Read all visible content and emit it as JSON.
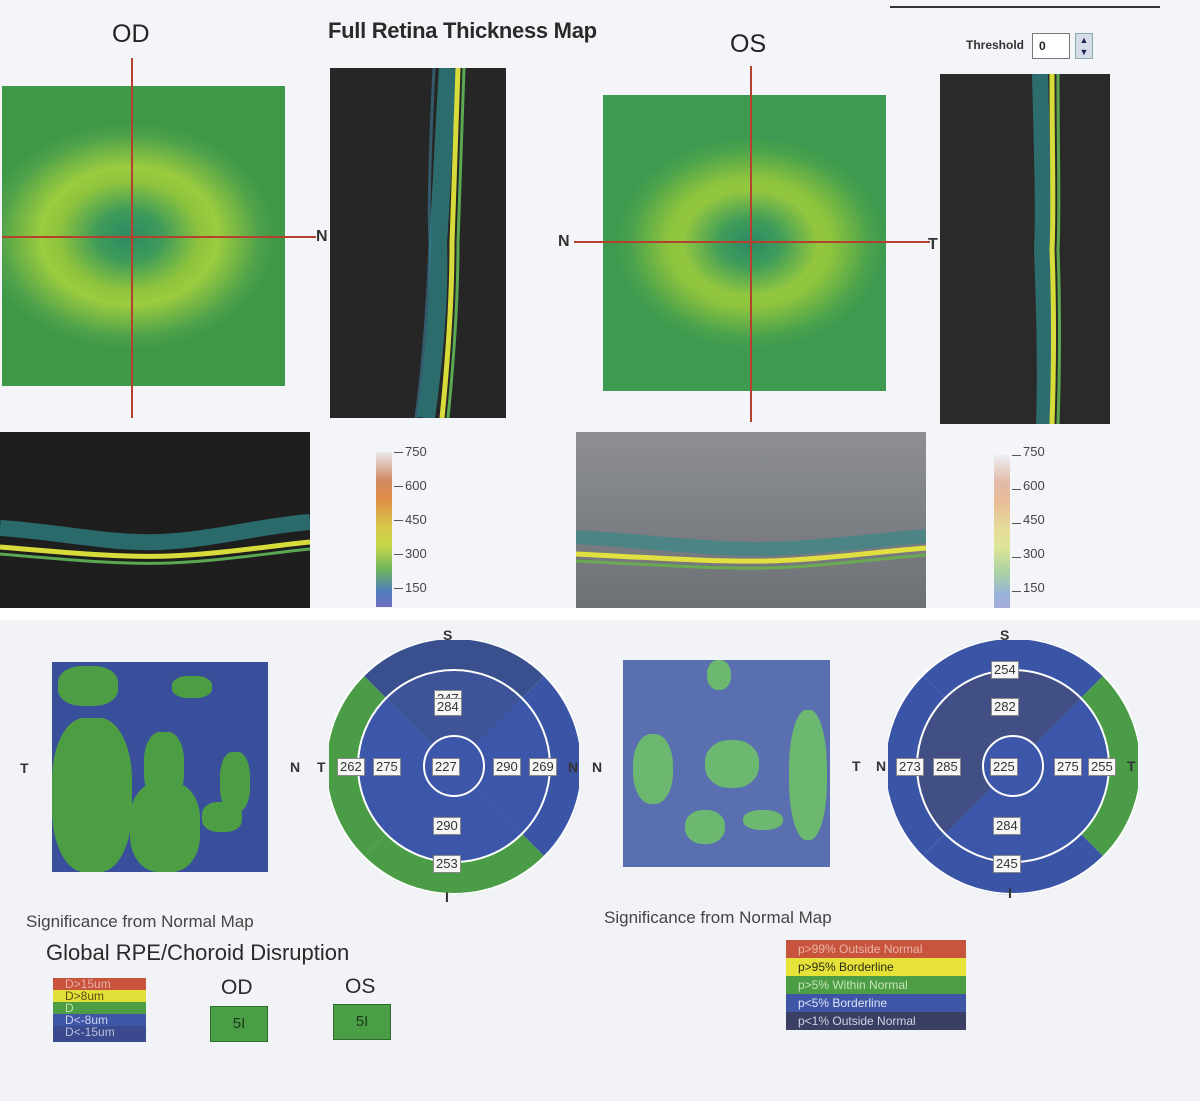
{
  "top": {
    "title": "Full Retina Thickness Map",
    "od_label": "OD",
    "os_label": "OS",
    "threshold_label": "Threshold",
    "threshold_value": "0",
    "od_dir_right": "N",
    "os_dir_left": "N",
    "os_dir_right": "T",
    "colorbar_ticks": [
      "750",
      "600",
      "450",
      "300",
      "150"
    ]
  },
  "bottom": {
    "od_map_left": "T",
    "od_chart": {
      "top": "S",
      "bottom": "I",
      "left_outer": "N",
      "left_inner": "T",
      "right": "N",
      "outer_s": "247",
      "inner_s": "284",
      "outer_t": "262",
      "inner_t": "275",
      "center": "227",
      "inner_n": "290",
      "outer_n": "269",
      "inner_i": "290",
      "outer_i": "253"
    },
    "os_map_left": "N",
    "os_chart": {
      "top": "S",
      "bottom": "I",
      "left_outer": "T",
      "left_inner": "N",
      "right": "T",
      "outer_s": "254",
      "inner_s": "282",
      "outer_n": "273",
      "inner_n": "285",
      "center": "225",
      "inner_t": "275",
      "outer_t": "255",
      "inner_i": "284",
      "outer_i": "245"
    },
    "sig_caption_od": "Significance from Normal Map",
    "sig_caption_os": "Significance from Normal Map",
    "global_title": "Global RPE/Choroid Disruption",
    "global_legend": [
      "D>15um",
      "D>8um",
      "D",
      "D<-8um",
      "D<-15um"
    ],
    "global_legend_colors": [
      "#c9543e",
      "#e3df3a",
      "#4d9d44",
      "#3f55a6",
      "#3b4a8e"
    ],
    "od_head": "OD",
    "os_head": "OS",
    "od_value": "5I",
    "os_value": "5I",
    "sig_legend": [
      "p>99% Outside Normal",
      "p>95% Borderline",
      "p>5% Within Normal",
      "p<5% Borderline",
      "p<1% Outside Normal"
    ],
    "sig_legend_colors": [
      "#c9543e",
      "#e6e23a",
      "#4d9d44",
      "#3f55a6",
      "#3a3f63"
    ]
  }
}
